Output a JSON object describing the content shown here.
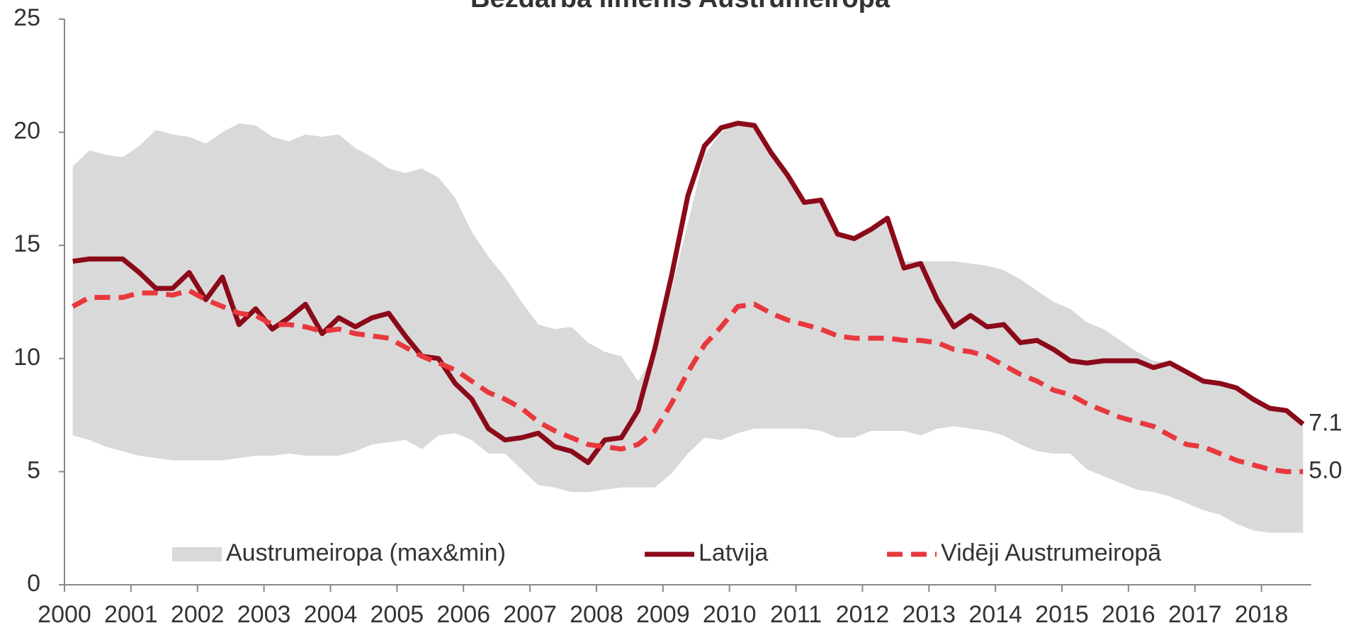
{
  "chart_data": {
    "type": "line",
    "title": "Bezdarba līmenis Austrumeiropā",
    "categories": [
      "2000",
      null,
      null,
      null,
      "2001",
      null,
      null,
      null,
      "2002",
      null,
      null,
      null,
      "2003",
      null,
      null,
      null,
      "2004",
      null,
      null,
      null,
      "2005",
      null,
      null,
      null,
      "2006",
      null,
      null,
      null,
      "2007",
      null,
      null,
      null,
      "2008",
      null,
      null,
      null,
      "2009",
      null,
      null,
      null,
      "2010",
      null,
      null,
      null,
      "2011",
      null,
      null,
      null,
      "2012",
      null,
      null,
      null,
      "2013",
      null,
      null,
      null,
      "2014",
      null,
      null,
      null,
      "2015",
      null,
      null,
      null,
      "2016",
      null,
      null,
      null,
      "2017",
      null,
      null,
      null,
      "2018",
      null,
      null
    ],
    "ylim": [
      0,
      25
    ],
    "yticks": [
      0,
      5,
      10,
      15,
      20,
      25
    ],
    "legend": "bottom",
    "series": [
      {
        "name": "Austrumeiropa (max&min)",
        "kind": "band",
        "color": "#d9d9d9",
        "values": [
          18.5,
          19.2,
          19.0,
          18.9,
          19.4,
          20.1,
          19.9,
          19.8,
          19.5,
          20.0,
          20.4,
          20.3,
          19.8,
          19.6,
          19.9,
          19.8,
          19.9,
          19.3,
          18.9,
          18.4,
          18.2,
          18.4,
          18.0,
          17.1,
          15.6,
          14.5,
          13.6,
          12.5,
          11.5,
          11.3,
          11.4,
          10.7,
          10.3,
          10.1,
          9.0,
          10.2,
          13.0,
          16.0,
          19.0,
          20.0,
          20.4,
          20.3,
          19.1,
          18.1,
          17.0,
          17.0,
          15.5,
          15.3,
          15.7,
          16.2,
          14.3,
          14.3,
          14.3,
          14.3,
          14.2,
          14.1,
          13.9,
          13.5,
          13.0,
          12.5,
          12.2,
          11.6,
          11.3,
          10.8,
          10.3,
          9.9,
          9.8,
          9.4,
          9.0,
          8.9,
          8.7,
          8.2,
          7.8,
          7.7,
          7.1
        ],
        "min": [
          6.6,
          6.4,
          6.1,
          5.9,
          5.7,
          5.6,
          5.5,
          5.5,
          5.5,
          5.5,
          5.6,
          5.7,
          5.7,
          5.8,
          5.7,
          5.7,
          5.7,
          5.9,
          6.2,
          6.3,
          6.4,
          6.0,
          6.6,
          6.7,
          6.4,
          5.8,
          5.8,
          5.1,
          4.4,
          4.3,
          4.1,
          4.1,
          4.2,
          4.3,
          4.3,
          4.3,
          4.9,
          5.8,
          6.5,
          6.4,
          6.7,
          6.9,
          6.9,
          6.9,
          6.9,
          6.8,
          6.5,
          6.5,
          6.8,
          6.8,
          6.8,
          6.6,
          6.9,
          7.0,
          6.9,
          6.8,
          6.6,
          6.2,
          5.9,
          5.8,
          5.8,
          5.1,
          4.8,
          4.5,
          4.2,
          4.1,
          3.9,
          3.6,
          3.3,
          3.1,
          2.7,
          2.4,
          2.3,
          2.3,
          2.3
        ]
      },
      {
        "name": "Latvija",
        "kind": "solid",
        "color": "#8b0a1a",
        "values": [
          14.3,
          14.4,
          14.4,
          14.4,
          13.8,
          13.1,
          13.1,
          13.8,
          12.6,
          13.6,
          11.5,
          12.2,
          11.3,
          11.8,
          12.4,
          11.1,
          11.8,
          11.4,
          11.8,
          12.0,
          11.0,
          10.1,
          10.0,
          8.9,
          8.2,
          6.9,
          6.4,
          6.5,
          6.7,
          6.1,
          5.9,
          5.4,
          6.4,
          6.5,
          7.7,
          10.4,
          13.6,
          17.2,
          19.4,
          20.2,
          20.4,
          20.3,
          19.1,
          18.1,
          16.9,
          17.0,
          15.5,
          15.3,
          15.7,
          16.2,
          14.0,
          14.2,
          12.6,
          11.4,
          11.9,
          11.4,
          11.5,
          10.7,
          10.8,
          10.4,
          9.9,
          9.8,
          9.9,
          9.9,
          9.9,
          9.6,
          9.8,
          9.4,
          9.0,
          8.9,
          8.7,
          8.2,
          7.8,
          7.7,
          7.1
        ],
        "value_labels": [
          null,
          null,
          null,
          null,
          null,
          null,
          null,
          null,
          null,
          null,
          null,
          null,
          null,
          null,
          null,
          null,
          null,
          null,
          null,
          null,
          null,
          null,
          null,
          null,
          null,
          null,
          null,
          null,
          null,
          null,
          null,
          null,
          null,
          null,
          null,
          null,
          null,
          null,
          null,
          null,
          null,
          null,
          null,
          null,
          null,
          null,
          null,
          null,
          null,
          null,
          null,
          null,
          null,
          null,
          null,
          null,
          null,
          null,
          null,
          null,
          null,
          null,
          null,
          null,
          null,
          null,
          null,
          null,
          null,
          null,
          null,
          null,
          null,
          null,
          "7.1"
        ]
      },
      {
        "name": "Vidēji Austrumeiropā",
        "kind": "dashed",
        "color": "#e8383d",
        "values": [
          12.3,
          12.7,
          12.7,
          12.7,
          12.9,
          12.9,
          12.8,
          13.0,
          12.6,
          12.3,
          12.0,
          11.9,
          11.5,
          11.5,
          11.4,
          11.2,
          11.3,
          11.1,
          11.0,
          10.9,
          10.5,
          10.1,
          9.8,
          9.5,
          9.0,
          8.5,
          8.2,
          7.8,
          7.2,
          6.8,
          6.5,
          6.2,
          6.1,
          6.0,
          6.2,
          6.8,
          8.0,
          9.4,
          10.6,
          11.4,
          12.3,
          12.4,
          12.0,
          11.7,
          11.5,
          11.3,
          11.0,
          10.9,
          10.9,
          10.9,
          10.8,
          10.8,
          10.7,
          10.4,
          10.3,
          10.1,
          9.7,
          9.3,
          9.0,
          8.6,
          8.4,
          8.0,
          7.7,
          7.4,
          7.2,
          7.0,
          6.6,
          6.2,
          6.1,
          5.8,
          5.5,
          5.3,
          5.1,
          5.0,
          5.0
        ],
        "value_labels": [
          null,
          null,
          null,
          null,
          null,
          null,
          null,
          null,
          null,
          null,
          null,
          null,
          null,
          null,
          null,
          null,
          null,
          null,
          null,
          null,
          null,
          null,
          null,
          null,
          null,
          null,
          null,
          null,
          null,
          null,
          null,
          null,
          null,
          null,
          null,
          null,
          null,
          null,
          null,
          null,
          null,
          null,
          null,
          null,
          null,
          null,
          null,
          null,
          null,
          null,
          null,
          null,
          null,
          null,
          null,
          null,
          null,
          null,
          null,
          null,
          null,
          null,
          null,
          null,
          null,
          null,
          null,
          null,
          null,
          null,
          null,
          null,
          null,
          null,
          "5.0"
        ]
      }
    ]
  }
}
